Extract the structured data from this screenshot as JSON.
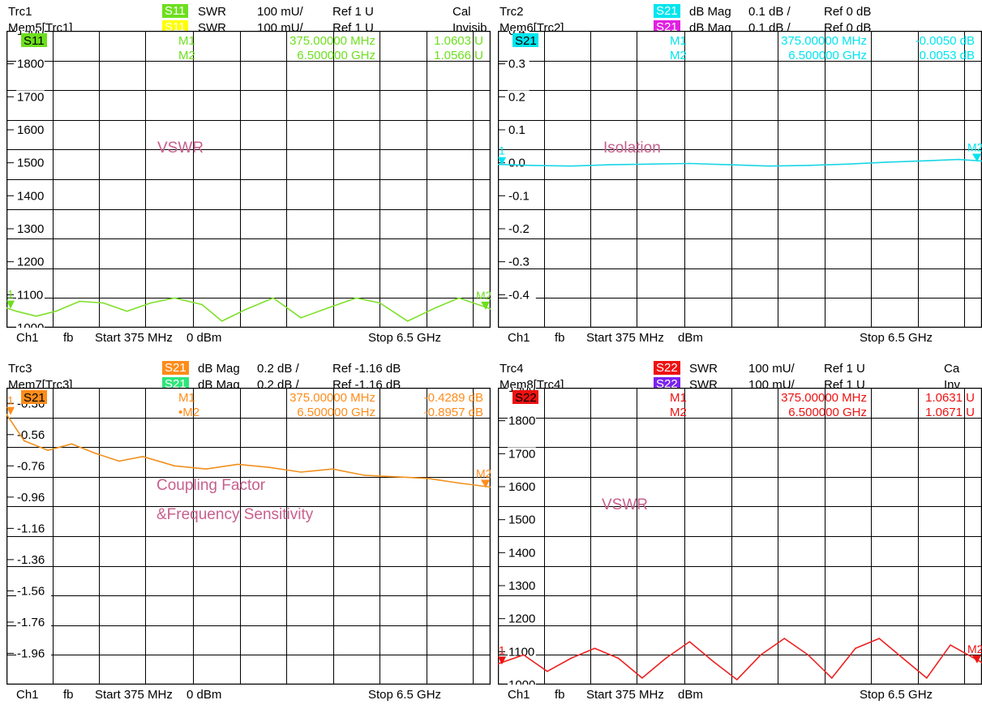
{
  "panels": [
    {
      "id": "p1",
      "header": [
        {
          "trc": "Trc1",
          "param": "S11",
          "param_color": "#6ddf1e",
          "fmt": "SWR",
          "scale": "100 mU/",
          "ref": "Ref 1 U",
          "extra": "Cal"
        },
        {
          "trc": "Mem5[Trc1]",
          "param": "S11",
          "param_color": "#ffff00",
          "fmt": "SWR",
          "scale": "100 mU/",
          "ref": "Ref 1 U",
          "extra": "Invisib"
        }
      ],
      "footer": {
        "ch": "Ch1",
        "fb": "fb",
        "start": "Start 375 MHz",
        "power": "0 dBm",
        "stop": "Stop 6.5 GHz"
      },
      "trace_tag": "S11",
      "markers": [
        {
          "name": "M1",
          "freq": "375.00000 MHz",
          "value": "1.0603 U"
        },
        {
          "name": "M2",
          "freq": "6.500000 GHz",
          "value": "1.0566 U"
        }
      ],
      "annotations": [
        "VSWR"
      ],
      "accent": "#6ddf1e",
      "marker_color": "#6ddf1e",
      "edge_labels": [
        "1",
        "M2"
      ]
    },
    {
      "id": "p2",
      "header": [
        {
          "trc": "Trc2",
          "param": "S21",
          "param_color": "#00e5ee",
          "fmt": "dB Mag",
          "scale": "0.1 dB /",
          "ref": "Ref 0 dB",
          "extra": ""
        },
        {
          "trc": "Mem6[Trc2]",
          "param": "S21",
          "param_color": "#e020e0",
          "fmt": "dB Mag",
          "scale": "0.1 dB /",
          "ref": "Ref 0 dB",
          "extra": ""
        }
      ],
      "footer": {
        "ch": "Ch1",
        "fb": "fb",
        "start": "Start 375 MHz",
        "power": "dBm",
        "stop": "Stop 6.5 GHz"
      },
      "trace_tag": "S21",
      "markers": [
        {
          "name": "M1",
          "freq": "375.00000 MHz",
          "value": "-0.0050 dB"
        },
        {
          "name": "M2",
          "freq": "6.500000 GHz",
          "value": "0.0053 dB"
        }
      ],
      "annotations": [
        "Isolation"
      ],
      "accent": "#00e5ee",
      "marker_color": "#00e5ee",
      "edge_labels": [
        "1",
        "M2"
      ]
    },
    {
      "id": "p3",
      "header": [
        {
          "trc": "Trc3",
          "param": "S21",
          "param_color": "#ff8c1a",
          "fmt": "dB Mag",
          "scale": "0.2 dB /",
          "ref": "Ref -1.16 dB",
          "extra": ""
        },
        {
          "trc": "Mem7[Trc3]",
          "param": "S21",
          "param_color": "#2ee57a",
          "fmt": "dB Mag",
          "scale": "0.2 dB /",
          "ref": "Ref -1.16 dB",
          "extra": ""
        }
      ],
      "footer": {
        "ch": "Ch1",
        "fb": "fb",
        "start": "Start 375 MHz",
        "power": "0 dBm",
        "stop": "Stop 6.5 GHz"
      },
      "trace_tag": "S21",
      "markers": [
        {
          "name": "M1",
          "freq": "375.00000 MHz",
          "value": "-0.4289 dB"
        },
        {
          "name": "•M2",
          "freq": "6.500000 GHz",
          "value": "-0.8957 dB"
        }
      ],
      "annotations": [
        "Coupling Factor",
        "&Frequency Sensitivity"
      ],
      "accent": "#ff8c1a",
      "marker_color": "#ff8c1a",
      "edge_labels": [
        "1",
        "M2"
      ]
    },
    {
      "id": "p4",
      "header": [
        {
          "trc": "Trc4",
          "param": "S22",
          "param_color": "#ee1111",
          "fmt": "SWR",
          "scale": "100 mU/",
          "ref": "Ref 1 U",
          "extra": "Ca"
        },
        {
          "trc": "Mem8[Trc4]",
          "param": "S22",
          "param_color": "#7a22ee",
          "fmt": "SWR",
          "scale": "100 mU/",
          "ref": "Ref 1 U",
          "extra": "Inv"
        }
      ],
      "footer": {
        "ch": "Ch1",
        "fb": "fb",
        "start": "Start 375 MHz",
        "power": "dBm",
        "stop": "Stop 6.5 GHz"
      },
      "trace_tag": "S22",
      "markers": [
        {
          "name": "M1",
          "freq": "375.00000 MHz",
          "value": "1.0631 U"
        },
        {
          "name": "M2",
          "freq": "6.500000 GHz",
          "value": "1.0671 U"
        }
      ],
      "annotations": [
        "VSWR"
      ],
      "accent": "#ee1111",
      "marker_color": "#ee1111",
      "edge_labels": [
        "1",
        "M2"
      ]
    }
  ],
  "chart_data": [
    {
      "type": "line",
      "id": "p1",
      "x_unit": "GHz",
      "xlim": [
        0.375,
        6.5
      ],
      "ylim": [
        1000,
        1900
      ],
      "yticks": [
        "1900",
        "1800",
        "1700",
        "1600",
        "1500",
        "1400",
        "1300",
        "1200",
        "1100",
        "1000"
      ],
      "series": [
        {
          "name": "S11",
          "color": "#7ee02a",
          "x": [
            0.375,
            0.5,
            0.75,
            1.0,
            1.3,
            1.6,
            1.9,
            2.2,
            2.5,
            2.85,
            3.1,
            3.4,
            3.75,
            4.1,
            4.5,
            4.8,
            5.1,
            5.45,
            5.8,
            6.1,
            6.5
          ],
          "y": [
            1060,
            1050,
            1035,
            1050,
            1080,
            1075,
            1050,
            1075,
            1090,
            1070,
            1020,
            1055,
            1090,
            1030,
            1065,
            1090,
            1075,
            1020,
            1060,
            1090,
            1057
          ]
        }
      ]
    },
    {
      "type": "line",
      "id": "p2",
      "x_unit": "GHz",
      "xlim": [
        0.375,
        6.5
      ],
      "ylim": [
        -0.5,
        0.4
      ],
      "yticks": [
        "0.4",
        "0.3",
        "0.2",
        "0.1",
        "0.0",
        "-0.1",
        "-0.2",
        "-0.3",
        "-0.4"
      ],
      "series": [
        {
          "name": "S21",
          "color": "#19d6e6",
          "x": [
            0.375,
            0.8,
            1.3,
            1.8,
            2.3,
            2.8,
            3.3,
            3.8,
            4.3,
            4.8,
            5.3,
            5.8,
            6.2,
            6.5
          ],
          "y": [
            -0.005,
            -0.008,
            -0.01,
            -0.006,
            -0.004,
            -0.002,
            -0.006,
            -0.01,
            -0.008,
            -0.004,
            0.002,
            0.006,
            0.01,
            0.0053
          ]
        }
      ]
    },
    {
      "type": "line",
      "id": "p3",
      "x_unit": "GHz",
      "xlim": [
        0.375,
        6.5
      ],
      "ylim": [
        -2.16,
        -0.26
      ],
      "yticks": [
        "-0.36",
        "-0.56",
        "-0.76",
        "-0.96",
        "-1.16",
        "-1.36",
        "-1.56",
        "-1.76",
        "-1.96"
      ],
      "series": [
        {
          "name": "S21",
          "color": "#f0901e",
          "x": [
            0.375,
            0.6,
            0.9,
            1.2,
            1.5,
            1.8,
            2.1,
            2.5,
            2.9,
            3.3,
            3.7,
            4.1,
            4.5,
            4.9,
            5.3,
            5.7,
            6.1,
            6.5
          ],
          "y": [
            -0.43,
            -0.6,
            -0.66,
            -0.62,
            -0.68,
            -0.73,
            -0.7,
            -0.76,
            -0.78,
            -0.75,
            -0.77,
            -0.8,
            -0.78,
            -0.82,
            -0.83,
            -0.84,
            -0.87,
            -0.8957
          ]
        }
      ]
    },
    {
      "type": "line",
      "id": "p4",
      "x_unit": "GHz",
      "xlim": [
        0.375,
        6.5
      ],
      "ylim": [
        1000,
        1900
      ],
      "yticks": [
        "1900",
        "1800",
        "1700",
        "1600",
        "1500",
        "1400",
        "1300",
        "1200",
        "1100",
        "1000"
      ],
      "series": [
        {
          "name": "S22",
          "color": "#ee2020",
          "x": [
            0.375,
            0.7,
            1.0,
            1.3,
            1.6,
            1.9,
            2.2,
            2.5,
            2.8,
            3.1,
            3.4,
            3.7,
            4.0,
            4.3,
            4.6,
            4.9,
            5.2,
            5.5,
            5.8,
            6.1,
            6.5
          ],
          "y": [
            1063,
            1090,
            1040,
            1080,
            1110,
            1080,
            1020,
            1080,
            1130,
            1070,
            1015,
            1090,
            1140,
            1090,
            1020,
            1110,
            1140,
            1080,
            1020,
            1120,
            1067
          ]
        }
      ]
    }
  ]
}
